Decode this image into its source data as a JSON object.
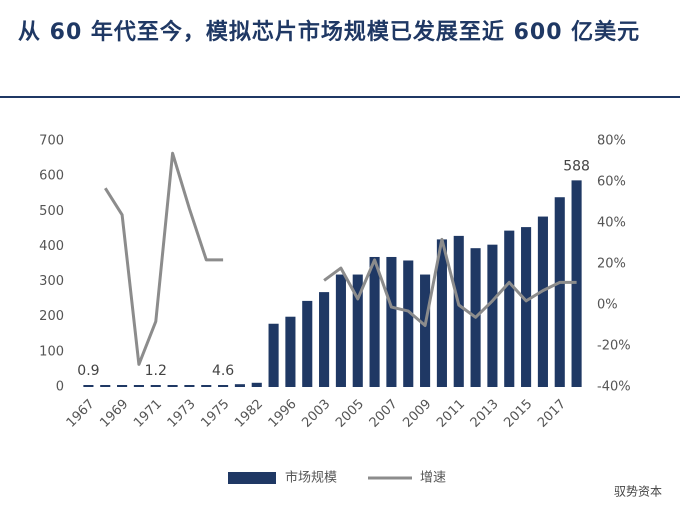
{
  "chart_data": {
    "type": "bar_line",
    "title": "从 60 年代至今，模拟芯片市场规模已发展至近 600 亿美元",
    "categories": [
      "1967",
      null,
      "1969",
      null,
      "1971",
      null,
      "1973",
      null,
      "1975",
      null,
      "1982",
      null,
      "1996",
      null,
      "2003",
      null,
      "2005",
      null,
      "2007",
      null,
      "2009",
      null,
      "2011",
      null,
      "2013",
      null,
      "2015",
      null,
      "2017",
      null
    ],
    "series": [
      {
        "name": "市场规模",
        "color": "#1f3864",
        "axis": "y",
        "values": [
          0.9,
          1.0,
          1.0,
          1.1,
          1.2,
          1.5,
          2.0,
          3.0,
          4.6,
          8,
          12,
          180,
          200,
          245,
          270,
          320,
          320,
          370,
          370,
          360,
          320,
          420,
          430,
          395,
          405,
          445,
          455,
          485,
          540,
          588
        ],
        "value_labels": [
          "0.9",
          null,
          null,
          null,
          "1.2",
          null,
          null,
          null,
          "4.6",
          null,
          null,
          null,
          null,
          null,
          null,
          null,
          null,
          null,
          null,
          null,
          null,
          null,
          null,
          null,
          null,
          null,
          null,
          null,
          null,
          "588"
        ]
      },
      {
        "name": "增速",
        "color": "#8c8c8c",
        "axis": "y2",
        "values": [
          null,
          57,
          44,
          -29,
          -8,
          74,
          47,
          22,
          22,
          null,
          null,
          null,
          null,
          null,
          12,
          18,
          3,
          22,
          -1,
          -3,
          -10,
          32,
          0,
          -6,
          2,
          11,
          2,
          7,
          11,
          11
        ]
      }
    ],
    "ylim": [
      0,
      700
    ],
    "yticks": [
      0,
      100,
      200,
      300,
      400,
      500,
      600,
      700
    ],
    "y2lim": [
      -40,
      80
    ],
    "y2ticks": [
      {
        "value": -40,
        "label": "-40%"
      },
      {
        "value": -20,
        "label": "-20%"
      },
      {
        "value": 0,
        "label": "0%"
      },
      {
        "value": 20,
        "label": "20%"
      },
      {
        "value": 40,
        "label": "40%"
      },
      {
        "value": 60,
        "label": "60%"
      },
      {
        "value": 80,
        "label": "80%"
      }
    ],
    "legend": "bottom",
    "watermark": "驭势资本"
  }
}
